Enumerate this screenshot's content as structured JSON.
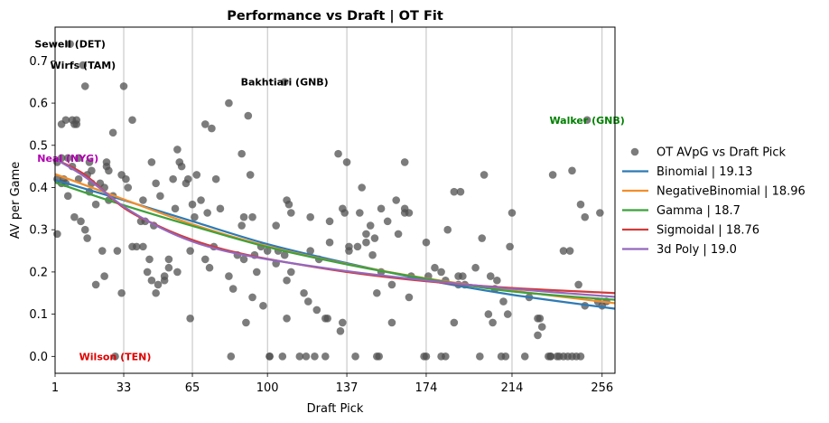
{
  "chart_data": {
    "type": "scatter",
    "title": "Performance vs Draft | OT Fit",
    "xlabel": "Draft Pick",
    "ylabel": "AV per Game",
    "xlim": [
      1,
      262
    ],
    "ylim": [
      -0.04,
      0.78
    ],
    "xticks": [
      1,
      33,
      65,
      100,
      137,
      174,
      214,
      256
    ],
    "yticks": [
      0.0,
      0.1,
      0.2,
      0.3,
      0.4,
      0.5,
      0.6,
      0.7
    ],
    "ytick_labels": [
      "0.0",
      "0.1",
      "0.2",
      "0.3",
      "0.4",
      "0.5",
      "0.6",
      "0.7"
    ],
    "grid": "vertical lines at x ticks",
    "legend_position": "outside right",
    "scatter": {
      "name": "OT AVpG vs Draft Pick",
      "color": "#505050",
      "points": [
        [
          2,
          0.46
        ],
        [
          2,
          0.42
        ],
        [
          2,
          0.29
        ],
        [
          4,
          0.41
        ],
        [
          4,
          0.47
        ],
        [
          4,
          0.55
        ],
        [
          5,
          0.42
        ],
        [
          6,
          0.41
        ],
        [
          6,
          0.56
        ],
        [
          7,
          0.47
        ],
        [
          7,
          0.38
        ],
        [
          8,
          0.74
        ],
        [
          9,
          0.56
        ],
        [
          9,
          0.45
        ],
        [
          10,
          0.55
        ],
        [
          10,
          0.33
        ],
        [
          11,
          0.56
        ],
        [
          11,
          0.55
        ],
        [
          12,
          0.42
        ],
        [
          12,
          0.47
        ],
        [
          13,
          0.32
        ],
        [
          14,
          0.69
        ],
        [
          15,
          0.64
        ],
        [
          15,
          0.3
        ],
        [
          16,
          0.28
        ],
        [
          16,
          0.43
        ],
        [
          17,
          0.46
        ],
        [
          17,
          0.39
        ],
        [
          18,
          0.41
        ],
        [
          18,
          0.44
        ],
        [
          20,
          0.17
        ],
        [
          20,
          0.36
        ],
        [
          22,
          0.41
        ],
        [
          23,
          0.25
        ],
        [
          24,
          0.4
        ],
        [
          24,
          0.19
        ],
        [
          25,
          0.46
        ],
        [
          25,
          0.45
        ],
        [
          26,
          0.37
        ],
        [
          26,
          0.44
        ],
        [
          28,
          0.53
        ],
        [
          28,
          0.38
        ],
        [
          29,
          0.0
        ],
        [
          30,
          0.25
        ],
        [
          32,
          0.43
        ],
        [
          32,
          0.15
        ],
        [
          33,
          0.64
        ],
        [
          34,
          0.42
        ],
        [
          35,
          0.4
        ],
        [
          37,
          0.56
        ],
        [
          37,
          0.26
        ],
        [
          39,
          0.26
        ],
        [
          41,
          0.32
        ],
        [
          42,
          0.37
        ],
        [
          42,
          0.26
        ],
        [
          43,
          0.32
        ],
        [
          44,
          0.2
        ],
        [
          45,
          0.23
        ],
        [
          46,
          0.46
        ],
        [
          46,
          0.18
        ],
        [
          47,
          0.31
        ],
        [
          48,
          0.41
        ],
        [
          48,
          0.15
        ],
        [
          49,
          0.17
        ],
        [
          50,
          0.38
        ],
        [
          52,
          0.18
        ],
        [
          52,
          0.19
        ],
        [
          54,
          0.23
        ],
        [
          54,
          0.21
        ],
        [
          56,
          0.42
        ],
        [
          57,
          0.35
        ],
        [
          58,
          0.2
        ],
        [
          58,
          0.49
        ],
        [
          59,
          0.46
        ],
        [
          60,
          0.45
        ],
        [
          62,
          0.41
        ],
        [
          63,
          0.42
        ],
        [
          64,
          0.25
        ],
        [
          64,
          0.09
        ],
        [
          65,
          0.36
        ],
        [
          66,
          0.33
        ],
        [
          67,
          0.43
        ],
        [
          69,
          0.37
        ],
        [
          71,
          0.55
        ],
        [
          71,
          0.23
        ],
        [
          72,
          0.34
        ],
        [
          73,
          0.21
        ],
        [
          74,
          0.54
        ],
        [
          75,
          0.26
        ],
        [
          76,
          0.42
        ],
        [
          78,
          0.35
        ],
        [
          82,
          0.6
        ],
        [
          82,
          0.19
        ],
        [
          83,
          0.0
        ],
        [
          84,
          0.16
        ],
        [
          86,
          0.24
        ],
        [
          88,
          0.48
        ],
        [
          88,
          0.31
        ],
        [
          89,
          0.23
        ],
        [
          89,
          0.33
        ],
        [
          90,
          0.08
        ],
        [
          91,
          0.57
        ],
        [
          92,
          0.43
        ],
        [
          93,
          0.33
        ],
        [
          93,
          0.14
        ],
        [
          94,
          0.24
        ],
        [
          95,
          0.2
        ],
        [
          97,
          0.26
        ],
        [
          98,
          0.12
        ],
        [
          100,
          0.25
        ],
        [
          101,
          0.0
        ],
        [
          101,
          0.0
        ],
        [
          104,
          0.22
        ],
        [
          104,
          0.31
        ],
        [
          105,
          0.25
        ],
        [
          107,
          0.0
        ],
        [
          108,
          0.24
        ],
        [
          108,
          0.65
        ],
        [
          109,
          0.18
        ],
        [
          109,
          0.09
        ],
        [
          109,
          0.37
        ],
        [
          110,
          0.36
        ],
        [
          111,
          0.2
        ],
        [
          111,
          0.34
        ],
        [
          115,
          0.0
        ],
        [
          117,
          0.15
        ],
        [
          118,
          0.0
        ],
        [
          119,
          0.13
        ],
        [
          120,
          0.25
        ],
        [
          120,
          0.33
        ],
        [
          122,
          0.0
        ],
        [
          123,
          0.11
        ],
        [
          124,
          0.23
        ],
        [
          127,
          0.0
        ],
        [
          127,
          0.09
        ],
        [
          128,
          0.09
        ],
        [
          129,
          0.27
        ],
        [
          129,
          0.32
        ],
        [
          133,
          0.48
        ],
        [
          134,
          0.06
        ],
        [
          135,
          0.08
        ],
        [
          135,
          0.35
        ],
        [
          136,
          0.34
        ],
        [
          137,
          0.46
        ],
        [
          138,
          0.26
        ],
        [
          138,
          0.25
        ],
        [
          141,
          0.0
        ],
        [
          142,
          0.26
        ],
        [
          143,
          0.34
        ],
        [
          144,
          0.4
        ],
        [
          146,
          0.29
        ],
        [
          146,
          0.27
        ],
        [
          148,
          0.31
        ],
        [
          149,
          0.24
        ],
        [
          150,
          0.28
        ],
        [
          151,
          0.15
        ],
        [
          151,
          0.0
        ],
        [
          152,
          0.0
        ],
        [
          153,
          0.2
        ],
        [
          153,
          0.35
        ],
        [
          156,
          0.32
        ],
        [
          158,
          0.17
        ],
        [
          158,
          0.08
        ],
        [
          160,
          0.37
        ],
        [
          161,
          0.29
        ],
        [
          164,
          0.35
        ],
        [
          164,
          0.46
        ],
        [
          164,
          0.34
        ],
        [
          166,
          0.14
        ],
        [
          166,
          0.34
        ],
        [
          167,
          0.19
        ],
        [
          173,
          0.0
        ],
        [
          174,
          0.0
        ],
        [
          174,
          0.27
        ],
        [
          175,
          0.19
        ],
        [
          178,
          0.21
        ],
        [
          181,
          0.0
        ],
        [
          181,
          0.2
        ],
        [
          183,
          0.18
        ],
        [
          183,
          0.0
        ],
        [
          184,
          0.3
        ],
        [
          187,
          0.08
        ],
        [
          187,
          0.39
        ],
        [
          189,
          0.17
        ],
        [
          189,
          0.19
        ],
        [
          190,
          0.39
        ],
        [
          191,
          0.19
        ],
        [
          192,
          0.17
        ],
        [
          197,
          0.21
        ],
        [
          199,
          0.0
        ],
        [
          200,
          0.28
        ],
        [
          201,
          0.43
        ],
        [
          203,
          0.1
        ],
        [
          204,
          0.19
        ],
        [
          205,
          0.08
        ],
        [
          206,
          0.16
        ],
        [
          207,
          0.18
        ],
        [
          209,
          0.0
        ],
        [
          210,
          0.13
        ],
        [
          211,
          0.0
        ],
        [
          212,
          0.1
        ],
        [
          213,
          0.26
        ],
        [
          214,
          0.34
        ],
        [
          220,
          0.0
        ],
        [
          222,
          0.14
        ],
        [
          226,
          0.05
        ],
        [
          226,
          0.09
        ],
        [
          227,
          0.09
        ],
        [
          228,
          0.07
        ],
        [
          231,
          0.0
        ],
        [
          232,
          0.0
        ],
        [
          232,
          0.0
        ],
        [
          233,
          0.43
        ],
        [
          235,
          0.0
        ],
        [
          236,
          0.0
        ],
        [
          238,
          0.0
        ],
        [
          238,
          0.25
        ],
        [
          240,
          0.0
        ],
        [
          241,
          0.25
        ],
        [
          242,
          0.0
        ],
        [
          242,
          0.44
        ],
        [
          244,
          0.0
        ],
        [
          245,
          0.17
        ],
        [
          246,
          0.0
        ],
        [
          246,
          0.36
        ],
        [
          248,
          0.33
        ],
        [
          248,
          0.12
        ],
        [
          249,
          0.56
        ],
        [
          254,
          0.13
        ],
        [
          255,
          0.34
        ],
        [
          256,
          0.12
        ],
        [
          258,
          0.13
        ]
      ]
    },
    "series": [
      {
        "name": "Binomial | 19.13",
        "color": "#2e7ab4",
        "x": [
          1,
          33,
          65,
          100,
          137,
          174,
          214,
          262
        ],
        "y": [
          0.418,
          0.37,
          0.32,
          0.266,
          0.221,
          0.181,
          0.146,
          0.113
        ]
      },
      {
        "name": "NegativeBinomial | 18.96",
        "color": "#f28e2b",
        "x": [
          1,
          33,
          65,
          100,
          137,
          174,
          214,
          262
        ],
        "y": [
          0.432,
          0.372,
          0.313,
          0.261,
          0.219,
          0.185,
          0.156,
          0.126
        ]
      },
      {
        "name": "Gamma | 18.7",
        "color": "#3da13d",
        "x": [
          1,
          33,
          65,
          100,
          137,
          174,
          214,
          262
        ],
        "y": [
          0.412,
          0.358,
          0.309,
          0.259,
          0.218,
          0.184,
          0.154,
          0.134
        ]
      },
      {
        "name": "Sigmoidal | 18.76",
        "color": "#d03b3b",
        "x": [
          1,
          15,
          33,
          50,
          65,
          80,
          100,
          137,
          174,
          214,
          262
        ],
        "y": [
          0.467,
          0.43,
          0.352,
          0.307,
          0.276,
          0.253,
          0.231,
          0.2,
          0.178,
          0.162,
          0.15
        ]
      },
      {
        "name": "3d Poly | 19.0",
        "color": "#9467bd",
        "x": [
          1,
          15,
          33,
          50,
          65,
          80,
          100,
          137,
          174,
          214,
          262
        ],
        "y": [
          0.468,
          0.425,
          0.355,
          0.305,
          0.272,
          0.25,
          0.23,
          0.202,
          0.18,
          0.16,
          0.141
        ]
      }
    ],
    "annotations": [
      {
        "text": "Sewell (DET)",
        "x": 8,
        "y": 0.74,
        "color": "#000000"
      },
      {
        "text": "Wirfs (TAM)",
        "x": 14,
        "y": 0.69,
        "color": "#000000"
      },
      {
        "text": "Bakhtiari (GNB)",
        "x": 108,
        "y": 0.65,
        "color": "#000000"
      },
      {
        "text": "Walker (GNB)",
        "x": 249,
        "y": 0.56,
        "color": "#008000"
      },
      {
        "text": "Neal (NYG)",
        "x": 7,
        "y": 0.47,
        "color": "#b000b0"
      },
      {
        "text": "Wilson (TEN)",
        "x": 29,
        "y": 0.0,
        "color": "#e00000"
      }
    ]
  }
}
